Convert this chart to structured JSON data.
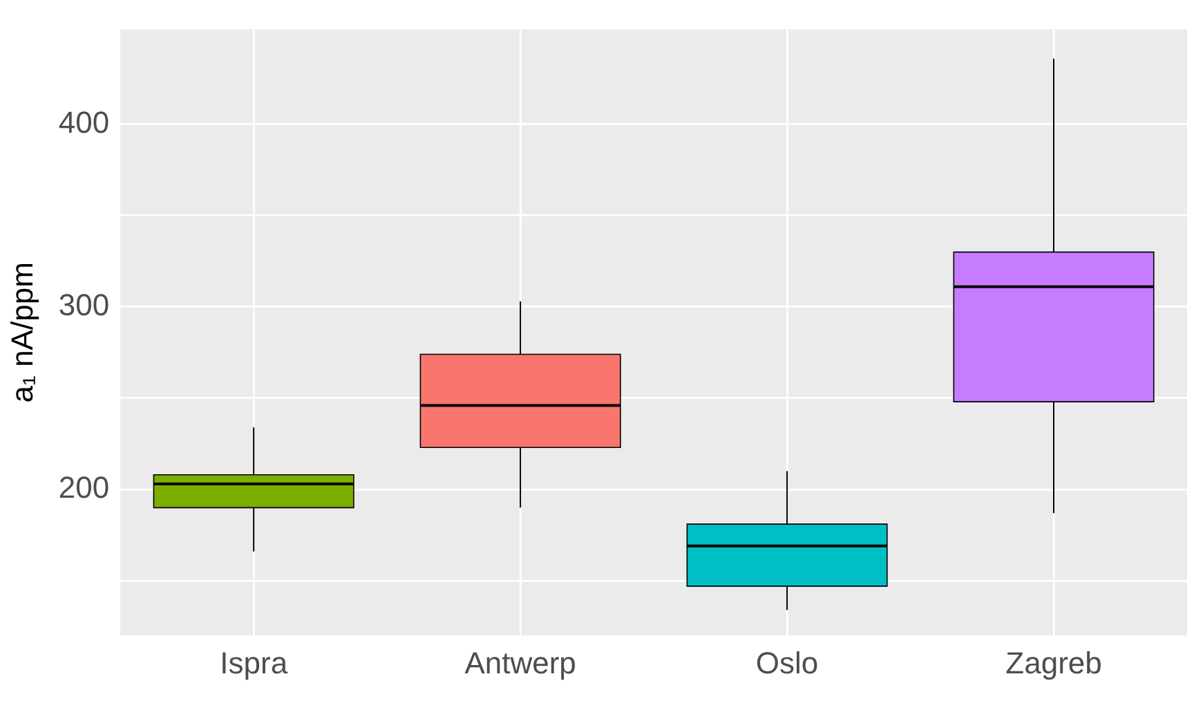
{
  "chart_data": {
    "type": "box",
    "ylabel": "a₁ nA/ppm",
    "categories": [
      "Ispra",
      "Antwerp",
      "Oslo",
      "Zagreb"
    ],
    "colors": [
      "#7cae00",
      "#f8766d",
      "#00bfc4",
      "#c77cff"
    ],
    "boxes": [
      {
        "low": 166,
        "q1": 190,
        "median": 203,
        "q3": 208,
        "high": 234
      },
      {
        "low": 190,
        "q1": 223,
        "median": 246,
        "q3": 274,
        "high": 303
      },
      {
        "low": 134,
        "q1": 147,
        "median": 169,
        "q3": 181,
        "high": 210
      },
      {
        "low": 187,
        "q1": 248,
        "median": 311,
        "q3": 330,
        "high": 436
      }
    ],
    "ylim": [
      120,
      452
    ],
    "yticks": [
      {
        "value": 150,
        "label": null
      },
      200,
      {
        "value": 250,
        "label": null
      },
      300,
      {
        "value": 350,
        "label": null
      },
      400
    ],
    "grid": true,
    "legend": false
  }
}
